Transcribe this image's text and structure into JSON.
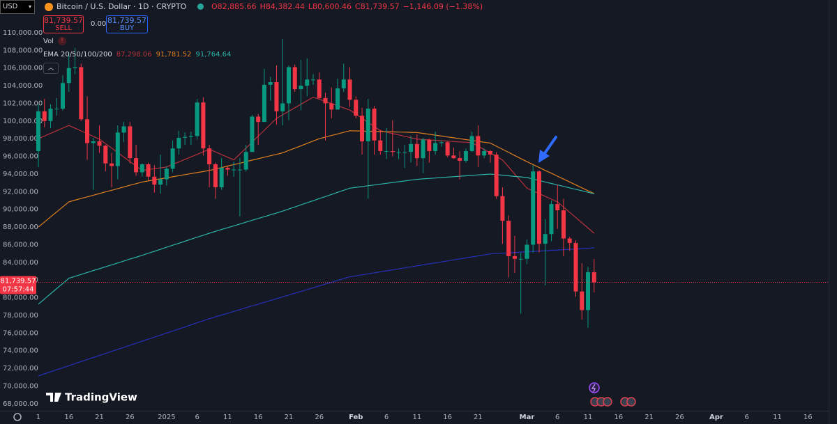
{
  "chart_data": {
    "type": "candlestick",
    "title": "Bitcoin / U.S. Dollar · 1D · CRYPTO",
    "ohlc_header": [
      "O82,885.66",
      "H84,382.44",
      "L80,600.46",
      "C81,739.57",
      "−1,146.09 (−1.38%)"
    ],
    "up_color": "#089981",
    "down_color": "#f23645",
    "ylim": [
      67200,
      113700
    ],
    "yticks": [
      {
        "value": 68000,
        "label": "68,000.00"
      },
      {
        "value": 70000,
        "label": "70,000.00"
      },
      {
        "value": 72000,
        "label": "72,000.00"
      },
      {
        "value": 74000,
        "label": "74,000.00"
      },
      {
        "value": 76000,
        "label": "76,000.00"
      },
      {
        "value": 78000,
        "label": "78,000.00"
      },
      {
        "value": 80000,
        "label": "80,000.00"
      },
      {
        "value": 82000,
        "label": "82,000.00"
      },
      {
        "value": 84000,
        "label": "84,000.00"
      },
      {
        "value": 86000,
        "label": "86,000.00"
      },
      {
        "value": 88000,
        "label": "88,000.00"
      },
      {
        "value": 90000,
        "label": "90,000.00"
      },
      {
        "value": 92000,
        "label": "92,000.00"
      },
      {
        "value": 94000,
        "label": "94,000.00"
      },
      {
        "value": 96000,
        "label": "96,000.00"
      },
      {
        "value": 98000,
        "label": "98,000.00"
      },
      {
        "value": 100000,
        "label": "100,000.00"
      },
      {
        "value": 102000,
        "label": "102,000.00"
      },
      {
        "value": 104000,
        "label": "104,000.00"
      },
      {
        "value": 106000,
        "label": "106,000.00"
      },
      {
        "value": 108000,
        "label": "108,000.00"
      },
      {
        "value": 110000,
        "label": "110,000.00"
      }
    ],
    "grid": false,
    "categories": [
      "1",
      null,
      null,
      null,
      null,
      "16",
      null,
      null,
      null,
      null,
      "21",
      null,
      null,
      null,
      null,
      "26",
      null,
      null,
      null,
      null,
      null,
      "2025",
      null,
      null,
      null,
      null,
      "6",
      null,
      null,
      null,
      null,
      "11",
      null,
      null,
      null,
      null,
      "16",
      null,
      null,
      null,
      null,
      "21",
      null,
      null,
      null,
      null,
      "26",
      null,
      null,
      null,
      null,
      null,
      "Feb",
      null,
      null,
      null,
      null,
      "6",
      null,
      null,
      null,
      null,
      "11",
      null,
      null,
      null,
      null,
      "16",
      null,
      null,
      null,
      null,
      "21",
      null,
      null,
      null,
      null,
      null,
      null,
      null,
      "Mar",
      null,
      null,
      null,
      null,
      "6",
      null,
      null,
      null,
      null,
      "11",
      null,
      null,
      null,
      null,
      "16",
      null,
      null,
      null,
      null,
      "21",
      null,
      null,
      null,
      null,
      "26",
      null,
      null,
      null,
      null,
      null,
      "Apr",
      null,
      null,
      null,
      null,
      "6",
      null,
      null,
      null,
      null,
      "11",
      null,
      null,
      null,
      null,
      "16",
      null
    ],
    "open": [
      96600,
      101100,
      100000,
      101400,
      101400,
      104300,
      106000,
      106100,
      100200,
      97500,
      97700,
      97200,
      95200,
      94900,
      98700,
      99400,
      95800,
      94200,
      95100,
      93700,
      92800,
      93400,
      94600,
      96900,
      98100,
      98200,
      98300,
      102100,
      96900,
      95100,
      92500,
      94700,
      94500,
      94500,
      94500,
      96500,
      100500,
      99900,
      104100,
      104400,
      101100,
      102000,
      106100,
      103600,
      104000,
      104700,
      104700,
      102600,
      102000,
      101300,
      103700,
      104700,
      102400,
      100600,
      97700,
      101400,
      97800,
      96600,
      96600,
      96500,
      96500,
      96500,
      97400,
      95800,
      97900,
      96600,
      97500,
      97600,
      96100,
      95800,
      95500,
      96600,
      98300,
      96100,
      96600,
      96200,
      91500,
      88700,
      84700,
      84400,
      84400,
      86000,
      94300,
      86100,
      87200,
      90600,
      89900,
      86700,
      86200,
      80700,
      78600,
      82885.66,
      null,
      null,
      null,
      null,
      null,
      null,
      null,
      null,
      null,
      null,
      null,
      null,
      null,
      null,
      null,
      null,
      null,
      null,
      null,
      null,
      null,
      null,
      null,
      null,
      null,
      null,
      null,
      null,
      null,
      null,
      null,
      null,
      null,
      null,
      null,
      null
    ],
    "high": [
      101900,
      102500,
      101900,
      102600,
      105200,
      107800,
      108300,
      106500,
      102800,
      98100,
      99500,
      97300,
      96400,
      99500,
      99900,
      99900,
      97300,
      95200,
      95300,
      95000,
      96200,
      94900,
      97800,
      98900,
      98700,
      98800,
      102500,
      102700,
      97300,
      95300,
      95800,
      94900,
      95400,
      95800,
      97300,
      100700,
      100800,
      105900,
      105000,
      106300,
      109300,
      106300,
      106400,
      106900,
      107100,
      105300,
      105500,
      103200,
      103800,
      104800,
      106500,
      106100,
      102800,
      101500,
      102500,
      101700,
      99000,
      99200,
      100100,
      96900,
      97300,
      98300,
      98500,
      98100,
      98000,
      98800,
      97800,
      97700,
      97000,
      96600,
      96900,
      98800,
      99500,
      96900,
      96700,
      96500,
      92500,
      89300,
      87000,
      85100,
      86600,
      95000,
      94400,
      88900,
      91000,
      92800,
      91200,
      86900,
      86500,
      83900,
      83500,
      84382.44,
      null,
      null,
      null,
      null,
      null,
      null,
      null,
      null,
      null,
      null,
      null,
      null,
      null,
      null,
      null,
      null,
      null,
      null,
      null,
      null,
      null,
      null,
      null,
      null,
      null,
      null,
      null,
      null,
      null,
      null,
      null,
      null,
      null,
      null,
      null,
      null
    ],
    "low": [
      94800,
      99300,
      99200,
      100600,
      101200,
      103300,
      105300,
      100000,
      95600,
      92200,
      96400,
      94300,
      92500,
      93400,
      97600,
      95200,
      93800,
      93700,
      93300,
      91900,
      91800,
      92700,
      94200,
      96200,
      97300,
      97300,
      97900,
      96100,
      92500,
      91200,
      92200,
      93800,
      93700,
      89200,
      94300,
      96500,
      97300,
      99900,
      102300,
      99600,
      99500,
      100100,
      103300,
      101200,
      102800,
      104100,
      102500,
      97800,
      100300,
      101300,
      103300,
      101600,
      100300,
      96200,
      91200,
      96200,
      96200,
      95700,
      96000,
      95700,
      94700,
      95300,
      94900,
      94100,
      95300,
      96200,
      97100,
      95900,
      95700,
      93400,
      95300,
      96500,
      94800,
      95800,
      95300,
      91200,
      86100,
      82300,
      82800,
      78200,
      83800,
      85100,
      85100,
      81400,
      86400,
      87800,
      84700,
      85300,
      80100,
      77500,
      76600,
      80600.46,
      null,
      null,
      null,
      null,
      null,
      null,
      null,
      null,
      null,
      null,
      null,
      null,
      null,
      null,
      null,
      null,
      null,
      null,
      null,
      null,
      null,
      null,
      null,
      null,
      null,
      null,
      null,
      null,
      null,
      null,
      null,
      null,
      null,
      null,
      null,
      null
    ],
    "close": [
      101100,
      100000,
      101400,
      101400,
      104300,
      106000,
      106100,
      100200,
      97500,
      97700,
      97200,
      95200,
      94900,
      98700,
      99400,
      95800,
      94200,
      95100,
      93700,
      92800,
      93400,
      94600,
      96900,
      98100,
      98200,
      98300,
      102100,
      96900,
      95100,
      92500,
      94700,
      94500,
      94500,
      94500,
      96500,
      100500,
      99900,
      104100,
      104400,
      101100,
      102000,
      106100,
      103600,
      104000,
      104700,
      104700,
      102600,
      102000,
      101300,
      103700,
      104700,
      102400,
      100600,
      97700,
      101400,
      97800,
      96600,
      96600,
      96500,
      96500,
      96500,
      97400,
      95800,
      97900,
      96600,
      97500,
      97600,
      96100,
      95800,
      95500,
      96600,
      98300,
      96100,
      96600,
      96200,
      91500,
      88700,
      84700,
      84400,
      84400,
      86000,
      94300,
      86100,
      87200,
      90600,
      89900,
      86700,
      86200,
      80700,
      78600,
      82900,
      81739.57,
      null,
      null,
      null,
      null,
      null,
      null,
      null,
      null,
      null,
      null,
      null,
      null,
      null,
      null,
      null,
      null,
      null,
      null,
      null,
      null,
      null,
      null,
      null,
      null,
      null,
      null,
      null,
      null,
      null,
      null,
      null,
      null,
      null,
      null,
      null,
      null
    ],
    "indicator_label": "EMA 20/50/100/200",
    "series": [
      {
        "color": "#b7323c",
        "value_label": "87,298.06",
        "values": [
          98000,
          98300,
          98600,
          98900,
          99200,
          99500,
          99190,
          98880,
          98570,
          98260,
          97950,
          97440,
          96940,
          96430,
          95920,
          95410,
          94910,
          94400,
          94500,
          94600,
          94700,
          94800,
          95090,
          95370,
          95660,
          95940,
          96230,
          96510,
          96800,
          96500,
          96200,
          95900,
          95600,
          96270,
          96940,
          97610,
          98290,
          98960,
          99630,
          100300,
          100700,
          101100,
          101500,
          101900,
          102300,
          102700,
          102460,
          102220,
          101980,
          101730,
          101490,
          101250,
          100780,
          100310,
          99840,
          99370,
          98900,
          98740,
          98580,
          98430,
          98270,
          98110,
          97950,
          97910,
          97860,
          97820,
          97770,
          97730,
          97680,
          97640,
          97600,
          97550,
          97160,
          96770,
          96380,
          95990,
          95600,
          94800,
          94000,
          93200,
          92400,
          92090,
          91780,
          91470,
          91160,
          90850,
          90260,
          89670,
          89080,
          88480,
          87890,
          87298.06,
          null,
          null,
          null,
          null,
          null,
          null,
          null,
          null,
          null,
          null,
          null,
          null,
          null,
          null,
          null,
          null,
          null,
          null,
          null,
          null,
          null,
          null,
          null,
          null,
          null,
          null,
          null,
          null,
          null,
          null,
          null,
          null,
          null,
          null,
          null,
          null
        ]
      },
      {
        "color": "#e0801f",
        "value_label": "91,781.52",
        "values": [
          88000,
          88570,
          89140,
          89710,
          90280,
          90850,
          91040,
          91230,
          91410,
          91600,
          91790,
          91980,
          92160,
          92350,
          92540,
          92730,
          92910,
          93100,
          93220,
          93340,
          93450,
          93570,
          93690,
          93810,
          93930,
          94050,
          94160,
          94280,
          94400,
          94570,
          94730,
          94900,
          95070,
          95230,
          95400,
          95570,
          95730,
          95900,
          96070,
          96230,
          96400,
          96670,
          96930,
          97200,
          97470,
          97730,
          98000,
          98180,
          98360,
          98540,
          98720,
          98900,
          98880,
          98860,
          98850,
          98830,
          98810,
          98790,
          98770,
          98750,
          98740,
          98720,
          98700,
          98600,
          98500,
          98400,
          98300,
          98200,
          98100,
          98000,
          97900,
          97800,
          97700,
          97600,
          97500,
          97150,
          96800,
          96450,
          96100,
          95750,
          95400,
          95070,
          94740,
          94410,
          94090,
          93760,
          93430,
          93100,
          92770,
          92440,
          92110,
          91781.52,
          null,
          null,
          null,
          null,
          null,
          null,
          null,
          null,
          null,
          null,
          null,
          null,
          null,
          null,
          null,
          null,
          null,
          null,
          null,
          null,
          null,
          null,
          null,
          null,
          null,
          null,
          null,
          null,
          null,
          null,
          null,
          null,
          null,
          null,
          null,
          null
        ]
      },
      {
        "color": "#2bb3a8",
        "value_label": "91,764.64",
        "values": [
          79270,
          79860,
          80440,
          81030,
          81610,
          82200,
          82420,
          82630,
          82850,
          83070,
          83280,
          83500,
          83720,
          83930,
          84150,
          84370,
          84580,
          84800,
          85030,
          85250,
          85480,
          85710,
          85940,
          86160,
          86390,
          86620,
          86850,
          87070,
          87300,
          87510,
          87720,
          87920,
          88130,
          88340,
          88550,
          88760,
          88970,
          89170,
          89380,
          89590,
          89800,
          90040,
          90270,
          90510,
          90750,
          90980,
          91220,
          91450,
          91690,
          91930,
          92160,
          92400,
          92490,
          92580,
          92670,
          92760,
          92850,
          92950,
          93040,
          93130,
          93220,
          93310,
          93400,
          93450,
          93500,
          93550,
          93600,
          93650,
          93700,
          93750,
          93800,
          93850,
          93900,
          93950,
          94000,
          93930,
          93870,
          93800,
          93730,
          93670,
          93600,
          93430,
          93270,
          93100,
          92930,
          92770,
          92600,
          92430,
          92270,
          92100,
          91930,
          91764.64,
          null,
          null,
          null,
          null,
          null,
          null,
          null,
          null,
          null,
          null,
          null,
          null,
          null,
          null,
          null,
          null,
          null,
          null,
          null,
          null,
          null,
          null,
          null,
          null,
          null,
          null,
          null,
          null,
          null,
          null,
          null,
          null,
          null,
          null,
          null,
          null
        ]
      },
      {
        "color": "#2430b8",
        "values": [
          71150,
          71380,
          71610,
          71840,
          72070,
          72300,
          72540,
          72770,
          73000,
          73230,
          73460,
          73690,
          73920,
          74150,
          74380,
          74620,
          74850,
          75080,
          75310,
          75540,
          75770,
          76000,
          76230,
          76460,
          76690,
          76930,
          77160,
          77390,
          77620,
          77830,
          78040,
          78240,
          78450,
          78650,
          78860,
          79070,
          79270,
          79480,
          79680,
          79890,
          80100,
          80300,
          80510,
          80710,
          80920,
          81130,
          81330,
          81540,
          81740,
          81950,
          82160,
          82360,
          82470,
          82590,
          82700,
          82810,
          82930,
          83040,
          83150,
          83260,
          83380,
          83490,
          83600,
          83720,
          83830,
          83940,
          84050,
          84170,
          84280,
          84390,
          84510,
          84620,
          84730,
          84840,
          84960,
          85000,
          85040,
          85080,
          85120,
          85160,
          85200,
          85240,
          85280,
          85320,
          85360,
          85400,
          85440,
          85480,
          85520,
          85560,
          85600,
          85640,
          null,
          null,
          null,
          null,
          null,
          null,
          null,
          null,
          null,
          null,
          null,
          null,
          null,
          null,
          null,
          null,
          null,
          null,
          null,
          null,
          null,
          null,
          null,
          null,
          null,
          null,
          null,
          null,
          null,
          null,
          null,
          null,
          null,
          null,
          null,
          null
        ]
      }
    ]
  },
  "ui": {
    "currency": "USD",
    "sell_price": "81,739.57",
    "sell_label": "SELL",
    "spread": "0.00",
    "buy_price": "81,739.57",
    "buy_label": "BUY",
    "volume_label": "Vol",
    "price_label": "81,739.57",
    "countdown": "07:57:44",
    "logo": "TradingView"
  }
}
